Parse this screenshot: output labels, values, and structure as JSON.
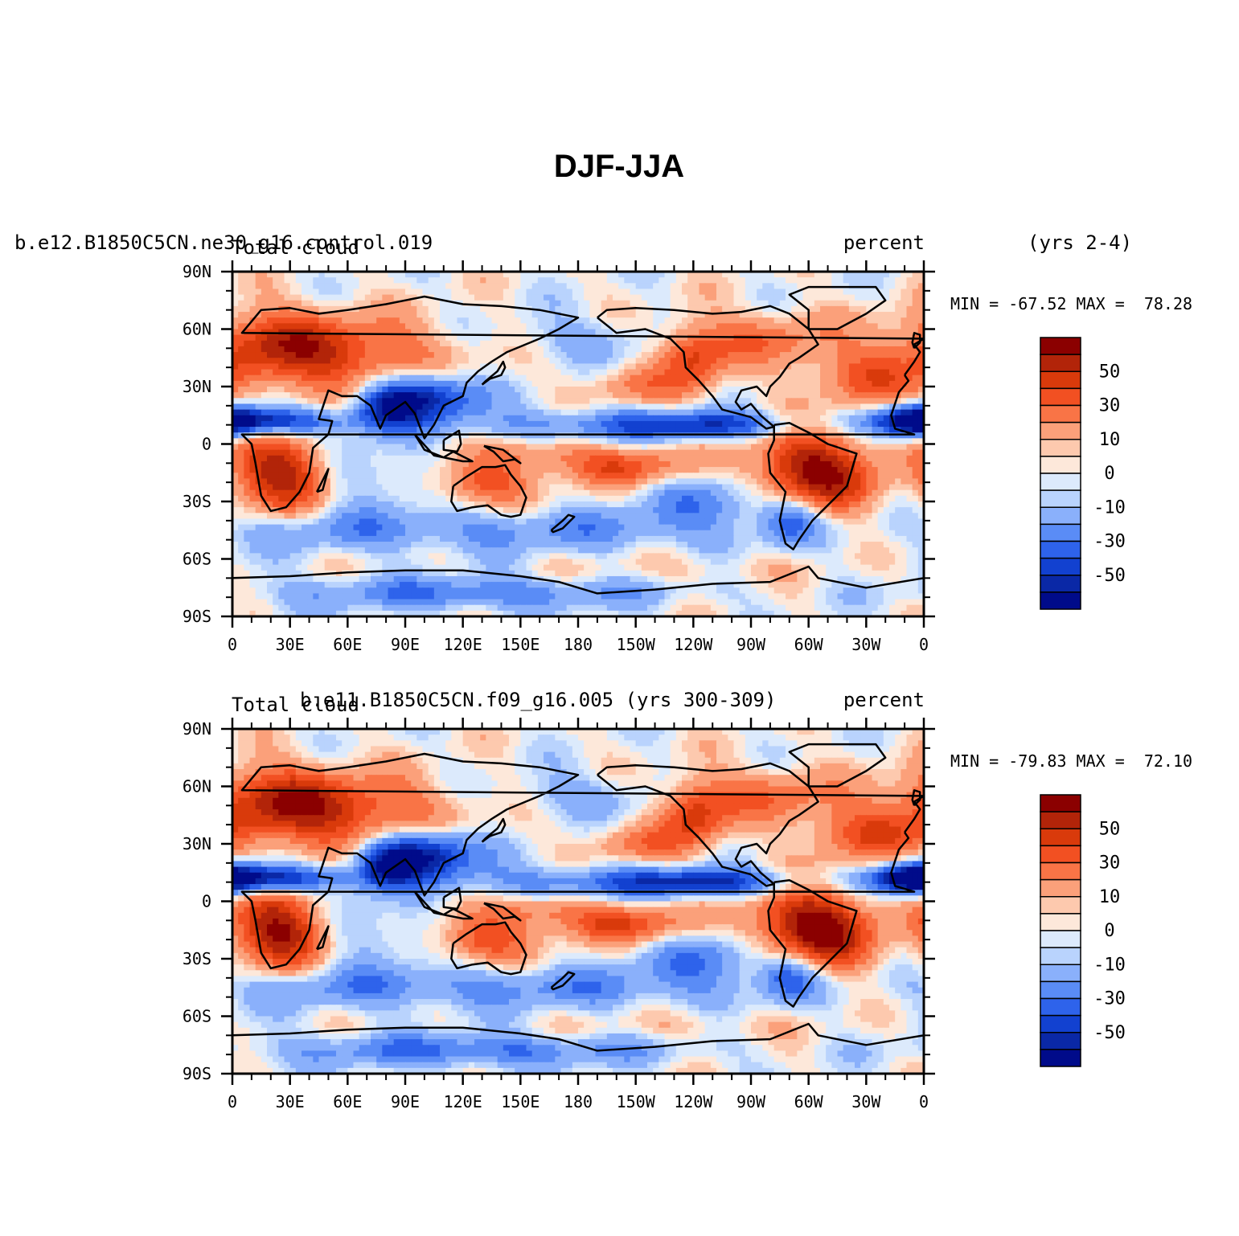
{
  "figure": {
    "title": "DJF-JJA"
  },
  "chart_data": [
    {
      "type": "heatmap",
      "panel": "top",
      "case_name": "b.e12.B1850C5CN.ne30_g16.control.019",
      "variable": "Total cloud",
      "units": "percent",
      "years": "(yrs 2-4)",
      "stats": "MIN = -67.52 MAX =  78.28",
      "min": -67.52,
      "max": 78.28,
      "x_ticks": [
        "0",
        "30E",
        "60E",
        "90E",
        "120E",
        "150E",
        "180",
        "150W",
        "120W",
        "90W",
        "60W",
        "30W",
        "0"
      ],
      "y_ticks": [
        "90N",
        "60N",
        "30N",
        "0",
        "30S",
        "60S",
        "90S"
      ],
      "xlim": [
        0,
        360
      ],
      "ylim": [
        -90,
        90
      ],
      "colorbar": {
        "levels": [
          -60,
          -50,
          -40,
          -30,
          -20,
          -10,
          -5,
          0,
          5,
          10,
          20,
          30,
          40,
          50,
          60
        ],
        "labels": [
          "50",
          "30",
          "10",
          "0",
          "-10",
          "-30",
          "-50"
        ],
        "colors": [
          "#8b0000",
          "#b22409",
          "#d93a0b",
          "#f25022",
          "#f97446",
          "#fba07a",
          "#fdc9ae",
          "#fde8da",
          "#dceafc",
          "#b9d3fd",
          "#8ab0fb",
          "#5a8cf6",
          "#2e63eb",
          "#1241d0",
          "#0a28a6",
          "#000b8a"
        ]
      }
    },
    {
      "type": "heatmap",
      "panel": "bottom",
      "case_name": "b.e11.B1850C5CN.f09_g16.005 (yrs 300-309)",
      "variable": "Total cloud",
      "units": "percent",
      "stats": "MIN = -79.83 MAX =  72.10",
      "min": -79.83,
      "max": 72.1,
      "x_ticks": [
        "0",
        "30E",
        "60E",
        "90E",
        "120E",
        "150E",
        "180",
        "150W",
        "120W",
        "90W",
        "60W",
        "30W",
        "0"
      ],
      "y_ticks": [
        "90N",
        "60N",
        "30N",
        "0",
        "30S",
        "60S",
        "90S"
      ],
      "xlim": [
        0,
        360
      ],
      "ylim": [
        -90,
        90
      ],
      "colorbar": {
        "levels": [
          -60,
          -50,
          -40,
          -30,
          -20,
          -10,
          -5,
          0,
          5,
          10,
          20,
          30,
          40,
          50,
          60
        ],
        "labels": [
          "50",
          "30",
          "10",
          "0",
          "-10",
          "-30",
          "-50"
        ],
        "colors": [
          "#8b0000",
          "#b22409",
          "#d93a0b",
          "#f25022",
          "#f97446",
          "#fba07a",
          "#fdc9ae",
          "#fde8da",
          "#dceafc",
          "#b9d3fd",
          "#8ab0fb",
          "#5a8cf6",
          "#2e63eb",
          "#1241d0",
          "#0a28a6",
          "#000b8a"
        ]
      }
    }
  ],
  "anomalies": [
    {
      "lon": 25,
      "lat": -15,
      "v": 60,
      "sx": 18,
      "sy": 14
    },
    {
      "lon": 300,
      "lat": -12,
      "v": 60,
      "sx": 22,
      "sy": 14
    },
    {
      "lon": 55,
      "lat": 45,
      "v": 40,
      "sx": 40,
      "sy": 14
    },
    {
      "lon": 20,
      "lat": 55,
      "v": 30,
      "sx": 25,
      "sy": 12
    },
    {
      "lon": 240,
      "lat": 45,
      "v": 40,
      "sx": 12,
      "sy": 12
    },
    {
      "lon": 280,
      "lat": 55,
      "v": 25,
      "sx": 25,
      "sy": 10
    },
    {
      "lon": 330,
      "lat": 35,
      "v": 30,
      "sx": 22,
      "sy": 10
    },
    {
      "lon": 130,
      "lat": -20,
      "v": 35,
      "sx": 18,
      "sy": 9
    },
    {
      "lon": 205,
      "lat": -12,
      "v": 35,
      "sx": 25,
      "sy": 7
    },
    {
      "lon": 160,
      "lat": -5,
      "v": 20,
      "sx": 18,
      "sy": 6
    },
    {
      "lon": 210,
      "lat": 30,
      "v": 20,
      "sx": 18,
      "sy": 7
    },
    {
      "lon": 320,
      "lat": -25,
      "v": 15,
      "sx": 15,
      "sy": 10
    },
    {
      "lon": 15,
      "lat": 12,
      "v": -60,
      "sx": 30,
      "sy": 5
    },
    {
      "lon": 355,
      "lat": 12,
      "v": -50,
      "sx": 12,
      "sy": 6
    },
    {
      "lon": 100,
      "lat": 25,
      "v": -60,
      "sx": 20,
      "sy": 9
    },
    {
      "lon": 80,
      "lat": 18,
      "v": -40,
      "sx": 12,
      "sy": 8
    },
    {
      "lon": 250,
      "lat": 10,
      "v": -45,
      "sx": 30,
      "sy": 5
    },
    {
      "lon": 180,
      "lat": 10,
      "v": -25,
      "sx": 45,
      "sy": 6
    },
    {
      "lon": 250,
      "lat": -30,
      "v": -25,
      "sx": 25,
      "sy": 10
    },
    {
      "lon": 70,
      "lat": -15,
      "v": -15,
      "sx": 25,
      "sy": 12
    },
    {
      "lon": 180,
      "lat": -45,
      "v": -20,
      "sx": 60,
      "sy": 8
    },
    {
      "lon": 60,
      "lat": -45,
      "v": -20,
      "sx": 50,
      "sy": 8
    },
    {
      "lon": 290,
      "lat": -40,
      "v": -30,
      "sx": 10,
      "sy": 8
    },
    {
      "lon": 120,
      "lat": -78,
      "v": -30,
      "sx": 70,
      "sy": 6
    },
    {
      "lon": 180,
      "lat": 55,
      "v": -15,
      "sx": 25,
      "sy": 8
    },
    {
      "lon": 240,
      "lat": -65,
      "v": 8,
      "sx": 40,
      "sy": 5
    }
  ]
}
